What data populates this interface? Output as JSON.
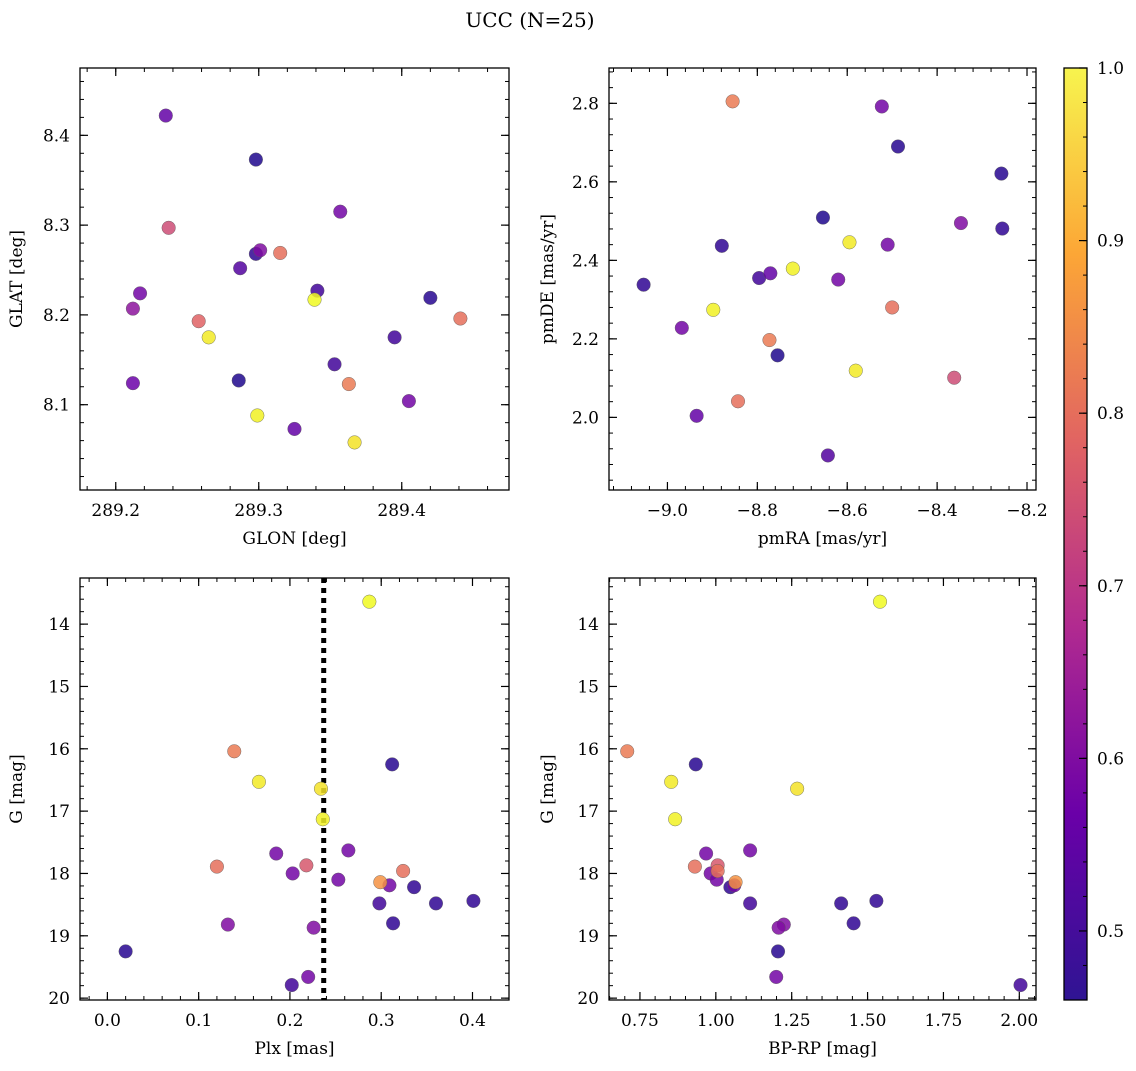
{
  "title": "UCC (N=25)",
  "colorbar": {
    "min": 0.46,
    "max": 1.0,
    "ticks": [
      "0.5",
      "0.6",
      "0.7",
      "0.8",
      "0.9",
      "1.0"
    ],
    "colormap": [
      "#0d0887",
      "#6a00a8",
      "#b12a90",
      "#e16462",
      "#fca636",
      "#f0f921"
    ]
  },
  "chart_data": [
    {
      "type": "scatter",
      "xlabel": "GLON [deg]",
      "ylabel": "GLAT [deg]",
      "xlim": [
        289.175,
        289.475
      ],
      "ylim": [
        8.005,
        8.475
      ],
      "xticks": [
        "289.2",
        "289.3",
        "289.4"
      ],
      "yticks": [
        "8.1",
        "8.2",
        "8.3",
        "8.4"
      ],
      "points": [
        {
          "x": 289.235,
          "y": 8.422,
          "c": 0.56
        },
        {
          "x": 289.298,
          "y": 8.373,
          "c": 0.48
        },
        {
          "x": 289.357,
          "y": 8.315,
          "c": 0.58
        },
        {
          "x": 289.237,
          "y": 8.297,
          "c": 0.74
        },
        {
          "x": 289.301,
          "y": 8.272,
          "c": 0.6
        },
        {
          "x": 289.298,
          "y": 8.268,
          "c": 0.5
        },
        {
          "x": 289.315,
          "y": 8.269,
          "c": 0.8
        },
        {
          "x": 289.287,
          "y": 8.252,
          "c": 0.54
        },
        {
          "x": 289.341,
          "y": 8.227,
          "c": 0.52
        },
        {
          "x": 289.217,
          "y": 8.224,
          "c": 0.58
        },
        {
          "x": 289.42,
          "y": 8.219,
          "c": 0.49
        },
        {
          "x": 289.339,
          "y": 8.217,
          "c": 1.0
        },
        {
          "x": 289.212,
          "y": 8.207,
          "c": 0.62
        },
        {
          "x": 289.441,
          "y": 8.196,
          "c": 0.8
        },
        {
          "x": 289.258,
          "y": 8.193,
          "c": 0.78
        },
        {
          "x": 289.265,
          "y": 8.175,
          "c": 0.98
        },
        {
          "x": 289.395,
          "y": 8.175,
          "c": 0.52
        },
        {
          "x": 289.353,
          "y": 8.145,
          "c": 0.52
        },
        {
          "x": 289.286,
          "y": 8.127,
          "c": 0.48
        },
        {
          "x": 289.212,
          "y": 8.124,
          "c": 0.57
        },
        {
          "x": 289.363,
          "y": 8.123,
          "c": 0.82
        },
        {
          "x": 289.405,
          "y": 8.104,
          "c": 0.58
        },
        {
          "x": 289.299,
          "y": 8.088,
          "c": 0.99
        },
        {
          "x": 289.325,
          "y": 8.073,
          "c": 0.56
        },
        {
          "x": 289.367,
          "y": 8.058,
          "c": 0.97
        }
      ]
    },
    {
      "type": "scatter",
      "xlabel": "pmRA [mas/yr]",
      "ylabel": "pmDE [mas/yr]",
      "xlim": [
        -9.13,
        -8.18
      ],
      "ylim": [
        1.815,
        2.89
      ],
      "xticks": [
        "−9.0",
        "−8.8",
        "−8.6",
        "−8.4",
        "−8.2"
      ],
      "yticks": [
        "2.0",
        "2.2",
        "2.4",
        "2.6",
        "2.8"
      ],
      "points": [
        {
          "x": -8.855,
          "y": 2.805,
          "c": 0.82
        },
        {
          "x": -8.523,
          "y": 2.792,
          "c": 0.58
        },
        {
          "x": -8.487,
          "y": 2.69,
          "c": 0.49
        },
        {
          "x": -8.257,
          "y": 2.621,
          "c": 0.49
        },
        {
          "x": -8.654,
          "y": 2.509,
          "c": 0.48
        },
        {
          "x": -8.347,
          "y": 2.495,
          "c": 0.6
        },
        {
          "x": -8.255,
          "y": 2.481,
          "c": 0.5
        },
        {
          "x": -8.595,
          "y": 2.446,
          "c": 0.98
        },
        {
          "x": -8.51,
          "y": 2.44,
          "c": 0.58
        },
        {
          "x": -8.879,
          "y": 2.437,
          "c": 0.5
        },
        {
          "x": -8.721,
          "y": 2.379,
          "c": 0.99
        },
        {
          "x": -8.771,
          "y": 2.367,
          "c": 0.56
        },
        {
          "x": -8.796,
          "y": 2.355,
          "c": 0.52
        },
        {
          "x": -8.62,
          "y": 2.351,
          "c": 0.58
        },
        {
          "x": -9.053,
          "y": 2.338,
          "c": 0.5
        },
        {
          "x": -8.5,
          "y": 2.28,
          "c": 0.8
        },
        {
          "x": -8.898,
          "y": 2.274,
          "c": 0.99
        },
        {
          "x": -8.968,
          "y": 2.228,
          "c": 0.58
        },
        {
          "x": -8.773,
          "y": 2.197,
          "c": 0.82
        },
        {
          "x": -8.755,
          "y": 2.158,
          "c": 0.48
        },
        {
          "x": -8.581,
          "y": 2.119,
          "c": 0.98
        },
        {
          "x": -8.362,
          "y": 2.101,
          "c": 0.74
        },
        {
          "x": -8.843,
          "y": 2.041,
          "c": 0.8
        },
        {
          "x": -8.935,
          "y": 2.004,
          "c": 0.56
        },
        {
          "x": -8.643,
          "y": 1.903,
          "c": 0.54
        }
      ]
    },
    {
      "type": "scatter",
      "xlabel": "Plx [mas]",
      "ylabel": "G [mag]",
      "xlim": [
        -0.03,
        0.44
      ],
      "ylim": [
        20.03,
        13.26
      ],
      "invert_y": true,
      "xticks": [
        "0.0",
        "0.1",
        "0.2",
        "0.3",
        "0.4"
      ],
      "yticks": [
        "14",
        "15",
        "16",
        "17",
        "18",
        "19",
        "20"
      ],
      "vline": 0.237,
      "points": [
        {
          "x": 0.287,
          "y": 13.64,
          "c": 1.0
        },
        {
          "x": 0.139,
          "y": 16.04,
          "c": 0.82
        },
        {
          "x": 0.312,
          "y": 16.25,
          "c": 0.49
        },
        {
          "x": 0.166,
          "y": 16.53,
          "c": 0.98
        },
        {
          "x": 0.234,
          "y": 16.64,
          "c": 0.97
        },
        {
          "x": 0.236,
          "y": 17.13,
          "c": 0.99
        },
        {
          "x": 0.264,
          "y": 17.63,
          "c": 0.58
        },
        {
          "x": 0.185,
          "y": 17.68,
          "c": 0.58
        },
        {
          "x": 0.218,
          "y": 17.87,
          "c": 0.76
        },
        {
          "x": 0.12,
          "y": 17.89,
          "c": 0.8
        },
        {
          "x": 0.324,
          "y": 17.96,
          "c": 0.8
        },
        {
          "x": 0.203,
          "y": 18.0,
          "c": 0.58
        },
        {
          "x": 0.253,
          "y": 18.1,
          "c": 0.58
        },
        {
          "x": 0.299,
          "y": 18.14,
          "c": 0.86
        },
        {
          "x": 0.309,
          "y": 18.19,
          "c": 0.58
        },
        {
          "x": 0.336,
          "y": 18.22,
          "c": 0.5
        },
        {
          "x": 0.401,
          "y": 18.44,
          "c": 0.5
        },
        {
          "x": 0.36,
          "y": 18.48,
          "c": 0.5
        },
        {
          "x": 0.298,
          "y": 18.48,
          "c": 0.52
        },
        {
          "x": 0.313,
          "y": 18.8,
          "c": 0.5
        },
        {
          "x": 0.132,
          "y": 18.82,
          "c": 0.6
        },
        {
          "x": 0.226,
          "y": 18.87,
          "c": 0.6
        },
        {
          "x": 0.02,
          "y": 19.25,
          "c": 0.49
        },
        {
          "x": 0.22,
          "y": 19.66,
          "c": 0.58
        },
        {
          "x": 0.202,
          "y": 19.79,
          "c": 0.52
        }
      ]
    },
    {
      "type": "scatter",
      "xlabel": "BP-RP [mag]",
      "ylabel": "G [mag]",
      "xlim": [
        0.648,
        2.055
      ],
      "ylim": [
        20.03,
        13.26
      ],
      "invert_y": true,
      "xticks": [
        "0.75",
        "1.00",
        "1.25",
        "1.50",
        "1.75",
        "2.00"
      ],
      "yticks": [
        "14",
        "15",
        "16",
        "17",
        "18",
        "19",
        "20"
      ],
      "points": [
        {
          "x": 1.541,
          "y": 13.64,
          "c": 1.0
        },
        {
          "x": 0.708,
          "y": 16.04,
          "c": 0.82
        },
        {
          "x": 0.934,
          "y": 16.25,
          "c": 0.49
        },
        {
          "x": 0.853,
          "y": 16.53,
          "c": 0.98
        },
        {
          "x": 1.268,
          "y": 16.64,
          "c": 0.97
        },
        {
          "x": 0.866,
          "y": 17.13,
          "c": 0.99
        },
        {
          "x": 1.113,
          "y": 17.63,
          "c": 0.58
        },
        {
          "x": 0.968,
          "y": 17.68,
          "c": 0.58
        },
        {
          "x": 1.006,
          "y": 17.87,
          "c": 0.76
        },
        {
          "x": 0.931,
          "y": 17.89,
          "c": 0.8
        },
        {
          "x": 1.006,
          "y": 17.96,
          "c": 0.8
        },
        {
          "x": 0.983,
          "y": 18.0,
          "c": 0.58
        },
        {
          "x": 1.003,
          "y": 18.1,
          "c": 0.58
        },
        {
          "x": 1.065,
          "y": 18.14,
          "c": 0.86
        },
        {
          "x": 1.061,
          "y": 18.19,
          "c": 0.58
        },
        {
          "x": 1.048,
          "y": 18.22,
          "c": 0.5
        },
        {
          "x": 1.529,
          "y": 18.44,
          "c": 0.5
        },
        {
          "x": 1.413,
          "y": 18.48,
          "c": 0.5
        },
        {
          "x": 1.113,
          "y": 18.48,
          "c": 0.52
        },
        {
          "x": 1.454,
          "y": 18.8,
          "c": 0.5
        },
        {
          "x": 1.224,
          "y": 18.82,
          "c": 0.6
        },
        {
          "x": 1.207,
          "y": 18.87,
          "c": 0.6
        },
        {
          "x": 1.205,
          "y": 19.25,
          "c": 0.49
        },
        {
          "x": 1.199,
          "y": 19.66,
          "c": 0.58
        },
        {
          "x": 2.004,
          "y": 19.79,
          "c": 0.52
        }
      ]
    }
  ]
}
